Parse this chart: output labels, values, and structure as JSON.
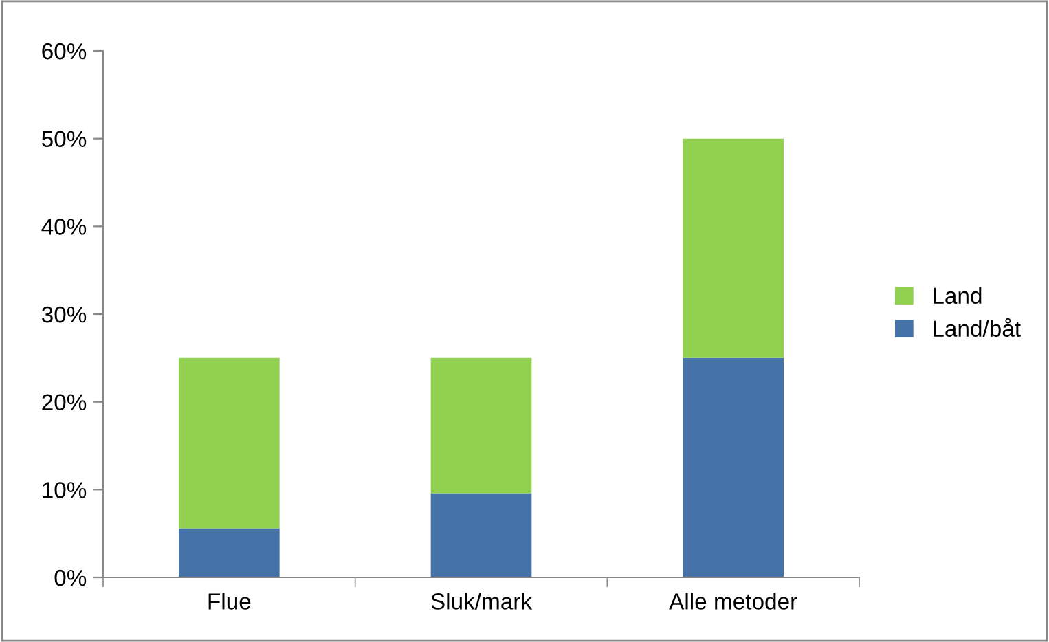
{
  "chart_data": {
    "type": "bar",
    "stacked": true,
    "categories": [
      "Flue",
      "Sluk/mark",
      "Alle metoder"
    ],
    "series": [
      {
        "name": "Land/båt",
        "color": "#4572a7",
        "values": [
          5.6,
          9.6,
          25
        ]
      },
      {
        "name": "Land",
        "color": "#92d050",
        "values": [
          19.4,
          15.4,
          25
        ]
      }
    ],
    "ylim": [
      0,
      60
    ],
    "yticks": [
      {
        "value": 0,
        "label": "0%"
      },
      {
        "value": 10,
        "label": "10%"
      },
      {
        "value": 20,
        "label": "20%"
      },
      {
        "value": 30,
        "label": "30%"
      },
      {
        "value": 40,
        "label": "40%"
      },
      {
        "value": 50,
        "label": "50%"
      },
      {
        "value": 60,
        "label": "60%"
      }
    ],
    "grid": false,
    "legend": "right"
  }
}
